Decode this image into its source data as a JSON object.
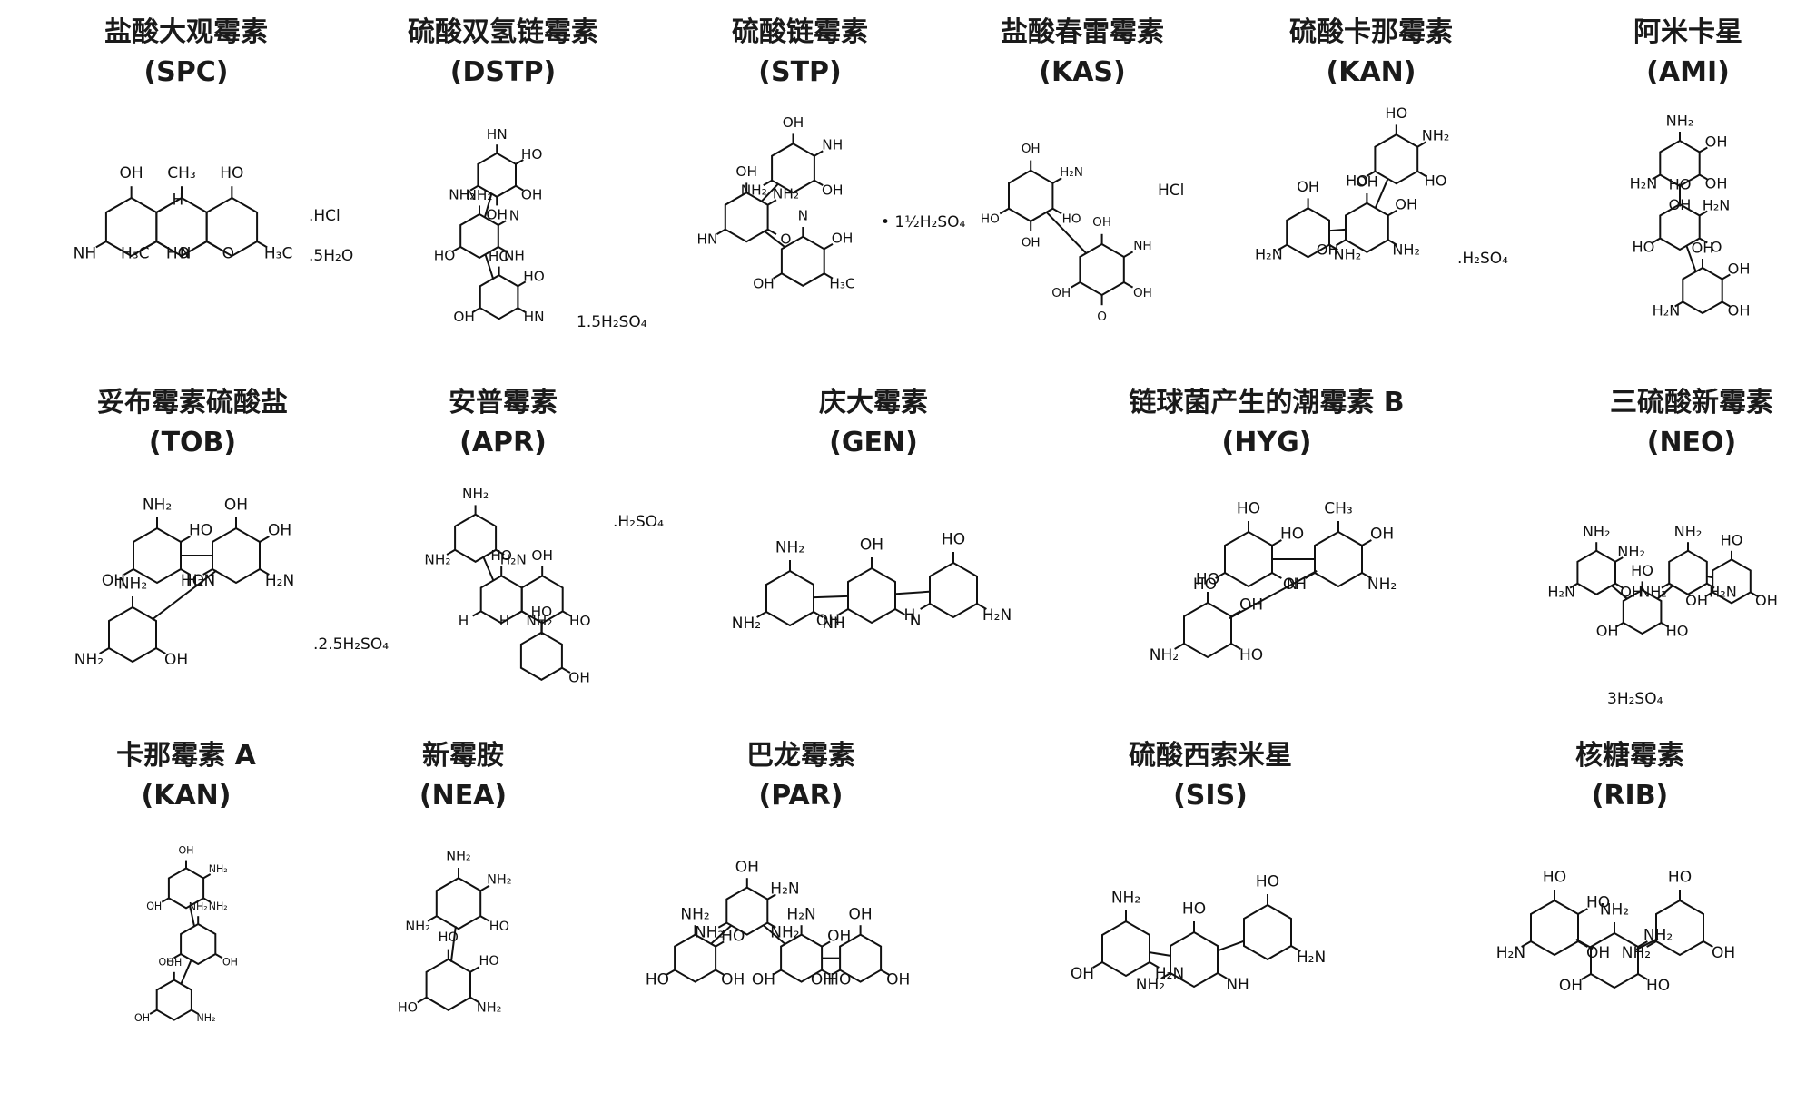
{
  "compounds": [
    {
      "name": "盐酸大观霉素",
      "abbr": "(SPC)",
      "groups": [
        "OH",
        "CH₃",
        "HO",
        "HO",
        "O",
        "H₃C",
        "NH",
        "H₃C",
        "N",
        "H"
      ],
      "salts": [
        ".HCl",
        ".5H₂O"
      ]
    },
    {
      "name": "硫酸双氢链霉素",
      "abbr": "(DSTP)",
      "groups": [
        "HN",
        "NH₂",
        "HO",
        "OH",
        "NH",
        "HN",
        "NH₂",
        "HO",
        "OH",
        "HO",
        "N",
        "HO",
        "OH"
      ],
      "salts": [
        "1.5H₂SO₄"
      ]
    },
    {
      "name": "硫酸链霉素",
      "abbr": "(STP)",
      "groups": [
        "OH",
        "OH",
        "N",
        "OH",
        "O",
        "H₃C",
        "NH₂",
        "HN",
        "OH",
        "NH",
        "NH₂",
        "OH"
      ],
      "salts": [
        "• 1½H₂SO₄"
      ]
    },
    {
      "name": "盐酸春雷霉素",
      "abbr": "(KAS)",
      "groups": [
        "OH",
        "OH",
        "HO",
        "OH",
        "HO",
        "OH",
        "H₂N",
        "NH",
        "OH",
        "O"
      ],
      "salts": [
        "HCl"
      ]
    },
    {
      "name": "硫酸卡那霉素",
      "abbr": "(KAN)",
      "groups": [
        "HO",
        "OH",
        "OH",
        "HO",
        "NH₂",
        "NH₂",
        "HO",
        "OH",
        "H₂N",
        "NH₂",
        "OH"
      ],
      "salts": [
        ".H₂SO₄"
      ]
    },
    {
      "name": "阿米卡星",
      "abbr": "(AMI)",
      "groups": [
        "NH₂",
        "HO",
        "OH",
        "OH",
        "O",
        "OH",
        "H₂N",
        "HO",
        "H₂N",
        "OH",
        "H₂N",
        "OH",
        "OH"
      ]
    },
    {
      "name": "妥布霉素硫酸盐",
      "abbr": "(TOB)",
      "groups": [
        "NH₂",
        "OH",
        "NH₂",
        "H₂N",
        "H₂N",
        "OH",
        "OH",
        "HO",
        "NH₂",
        "HO",
        "OH"
      ],
      "salts": [
        ".2.5H₂SO₄"
      ]
    },
    {
      "name": "安普霉素",
      "abbr": "(APR)",
      "groups": [
        "NH₂",
        "HO",
        "OH",
        "HO",
        "H₂N",
        "NH₂",
        "HO",
        "OH",
        "NH₂",
        "H",
        "H"
      ],
      "salts": [
        ".H₂SO₄"
      ]
    },
    {
      "name": "庆大霉素",
      "abbr": "(GEN)",
      "groups": [
        "NH₂",
        "OH",
        "HO",
        "NH",
        "N",
        "H₂N",
        "NH₂",
        "OH",
        "H"
      ]
    },
    {
      "name": "链球菌产生的潮霉素 B",
      "abbr": "(HYG)",
      "groups": [
        "HO",
        "CH₃",
        "HO",
        "N",
        "NH₂",
        "HO",
        "HO",
        "OH",
        "NH₂",
        "HO",
        "OH",
        "OH"
      ]
    },
    {
      "name": "三硫酸新霉素",
      "abbr": "(NEO)",
      "groups": [
        "NH₂",
        "HO",
        "NH₂",
        "HO",
        "OH",
        "HO",
        "H₂N",
        "OH",
        "H₂N",
        "OH",
        "NH₂",
        "OH",
        "NH₂"
      ],
      "salts": [
        "3H₂SO₄"
      ]
    },
    {
      "name": "卡那霉素 A",
      "abbr": "(KAN)",
      "groups": [
        "OH",
        "NH₂",
        "OH",
        "NH₂",
        "OH",
        "NH₂",
        "OH",
        "OH",
        "OH",
        "NH₂"
      ]
    },
    {
      "name": "新霉胺",
      "abbr": "(NEA)",
      "groups": [
        "NH₂",
        "HO",
        "HO",
        "NH₂",
        "NH₂",
        "HO",
        "NH₂",
        "HO"
      ]
    },
    {
      "name": "巴龙霉素",
      "abbr": "(PAR)",
      "groups": [
        "NH₂",
        "OH",
        "H₂N",
        "OH",
        "OH",
        "NH₂",
        "HO",
        "OH",
        "HO",
        "NH₂",
        "OH",
        "OH",
        "HO",
        "H₂N",
        "OH"
      ]
    },
    {
      "name": "硫酸西索米星",
      "abbr": "(SIS)",
      "groups": [
        "NH₂",
        "HO",
        "HO",
        "H₂N",
        "NH",
        "H₂N",
        "OH",
        "NH₂"
      ]
    },
    {
      "name": "核糖霉素",
      "abbr": "(RIB)",
      "groups": [
        "HO",
        "NH₂",
        "HO",
        "OH",
        "HO",
        "OH",
        "H₂N",
        "OH",
        "NH₂",
        "HO",
        "NH₂"
      ]
    }
  ]
}
